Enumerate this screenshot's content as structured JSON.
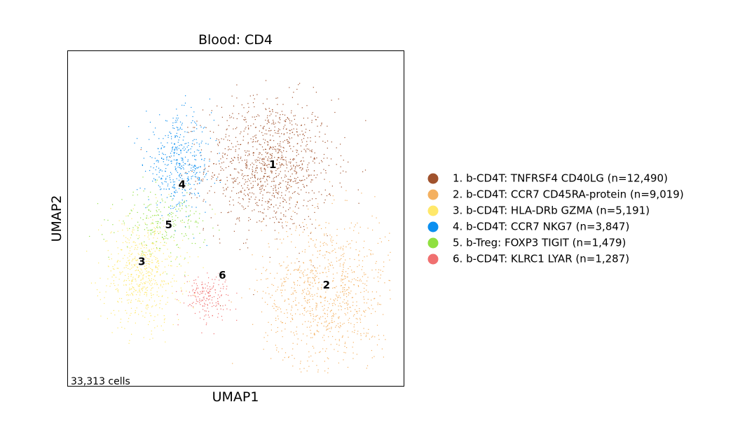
{
  "chart_data": {
    "type": "scatter",
    "title": "Blood: CD4",
    "xlabel": "UMAP1",
    "ylabel": "UMAP2",
    "annotation": "33,313 cells",
    "xlim": [
      0,
      10
    ],
    "ylim": [
      0,
      10
    ],
    "grid": false,
    "legend_position": "right",
    "series": [
      {
        "id": "1",
        "name": "1. b-CD4T: TNFRSF4 CD40LG (n=12,490)",
        "color": "#a0522d",
        "center": [
          6.0,
          6.6
        ],
        "spread": [
          1.9,
          2.0
        ],
        "density": 1100
      },
      {
        "id": "2",
        "name": "2. b-CD4T: CCR7 CD45RA-protein (n=9,019)",
        "color": "#f4b060",
        "center": [
          7.7,
          2.8
        ],
        "spread": [
          1.9,
          2.3
        ],
        "density": 900
      },
      {
        "id": "3",
        "name": "3. b-CD4T: HLA-DRb GZMA (n=5,191)",
        "color": "#ffe86a",
        "center": [
          2.2,
          3.4
        ],
        "spread": [
          1.2,
          1.6
        ],
        "density": 600
      },
      {
        "id": "4",
        "name": "4. b-CD4T: CCR7 NKG7 (n=3,847)",
        "color": "#0b8ff0",
        "center": [
          3.3,
          6.6
        ],
        "spread": [
          1.0,
          1.4
        ],
        "density": 450
      },
      {
        "id": "5",
        "name": "5. b-Treg: FOXP3 TIGIT (n=1,479)",
        "color": "#90e040",
        "center": [
          2.8,
          4.9
        ],
        "spread": [
          1.3,
          0.9
        ],
        "density": 220
      },
      {
        "id": "6",
        "name": "6. b-CD4T: KLRC1 LYAR (n=1,287)",
        "color": "#f07070",
        "center": [
          4.1,
          2.7
        ],
        "spread": [
          0.7,
          0.7
        ],
        "density": 180
      }
    ],
    "cluster_labels": [
      {
        "text": "1",
        "x": 6.1,
        "y": 6.6
      },
      {
        "text": "2",
        "x": 7.7,
        "y": 3.0
      },
      {
        "text": "3",
        "x": 2.2,
        "y": 3.7
      },
      {
        "text": "4",
        "x": 3.4,
        "y": 6.0
      },
      {
        "text": "5",
        "x": 3.0,
        "y": 4.8
      },
      {
        "text": "6",
        "x": 4.6,
        "y": 3.3
      }
    ]
  }
}
